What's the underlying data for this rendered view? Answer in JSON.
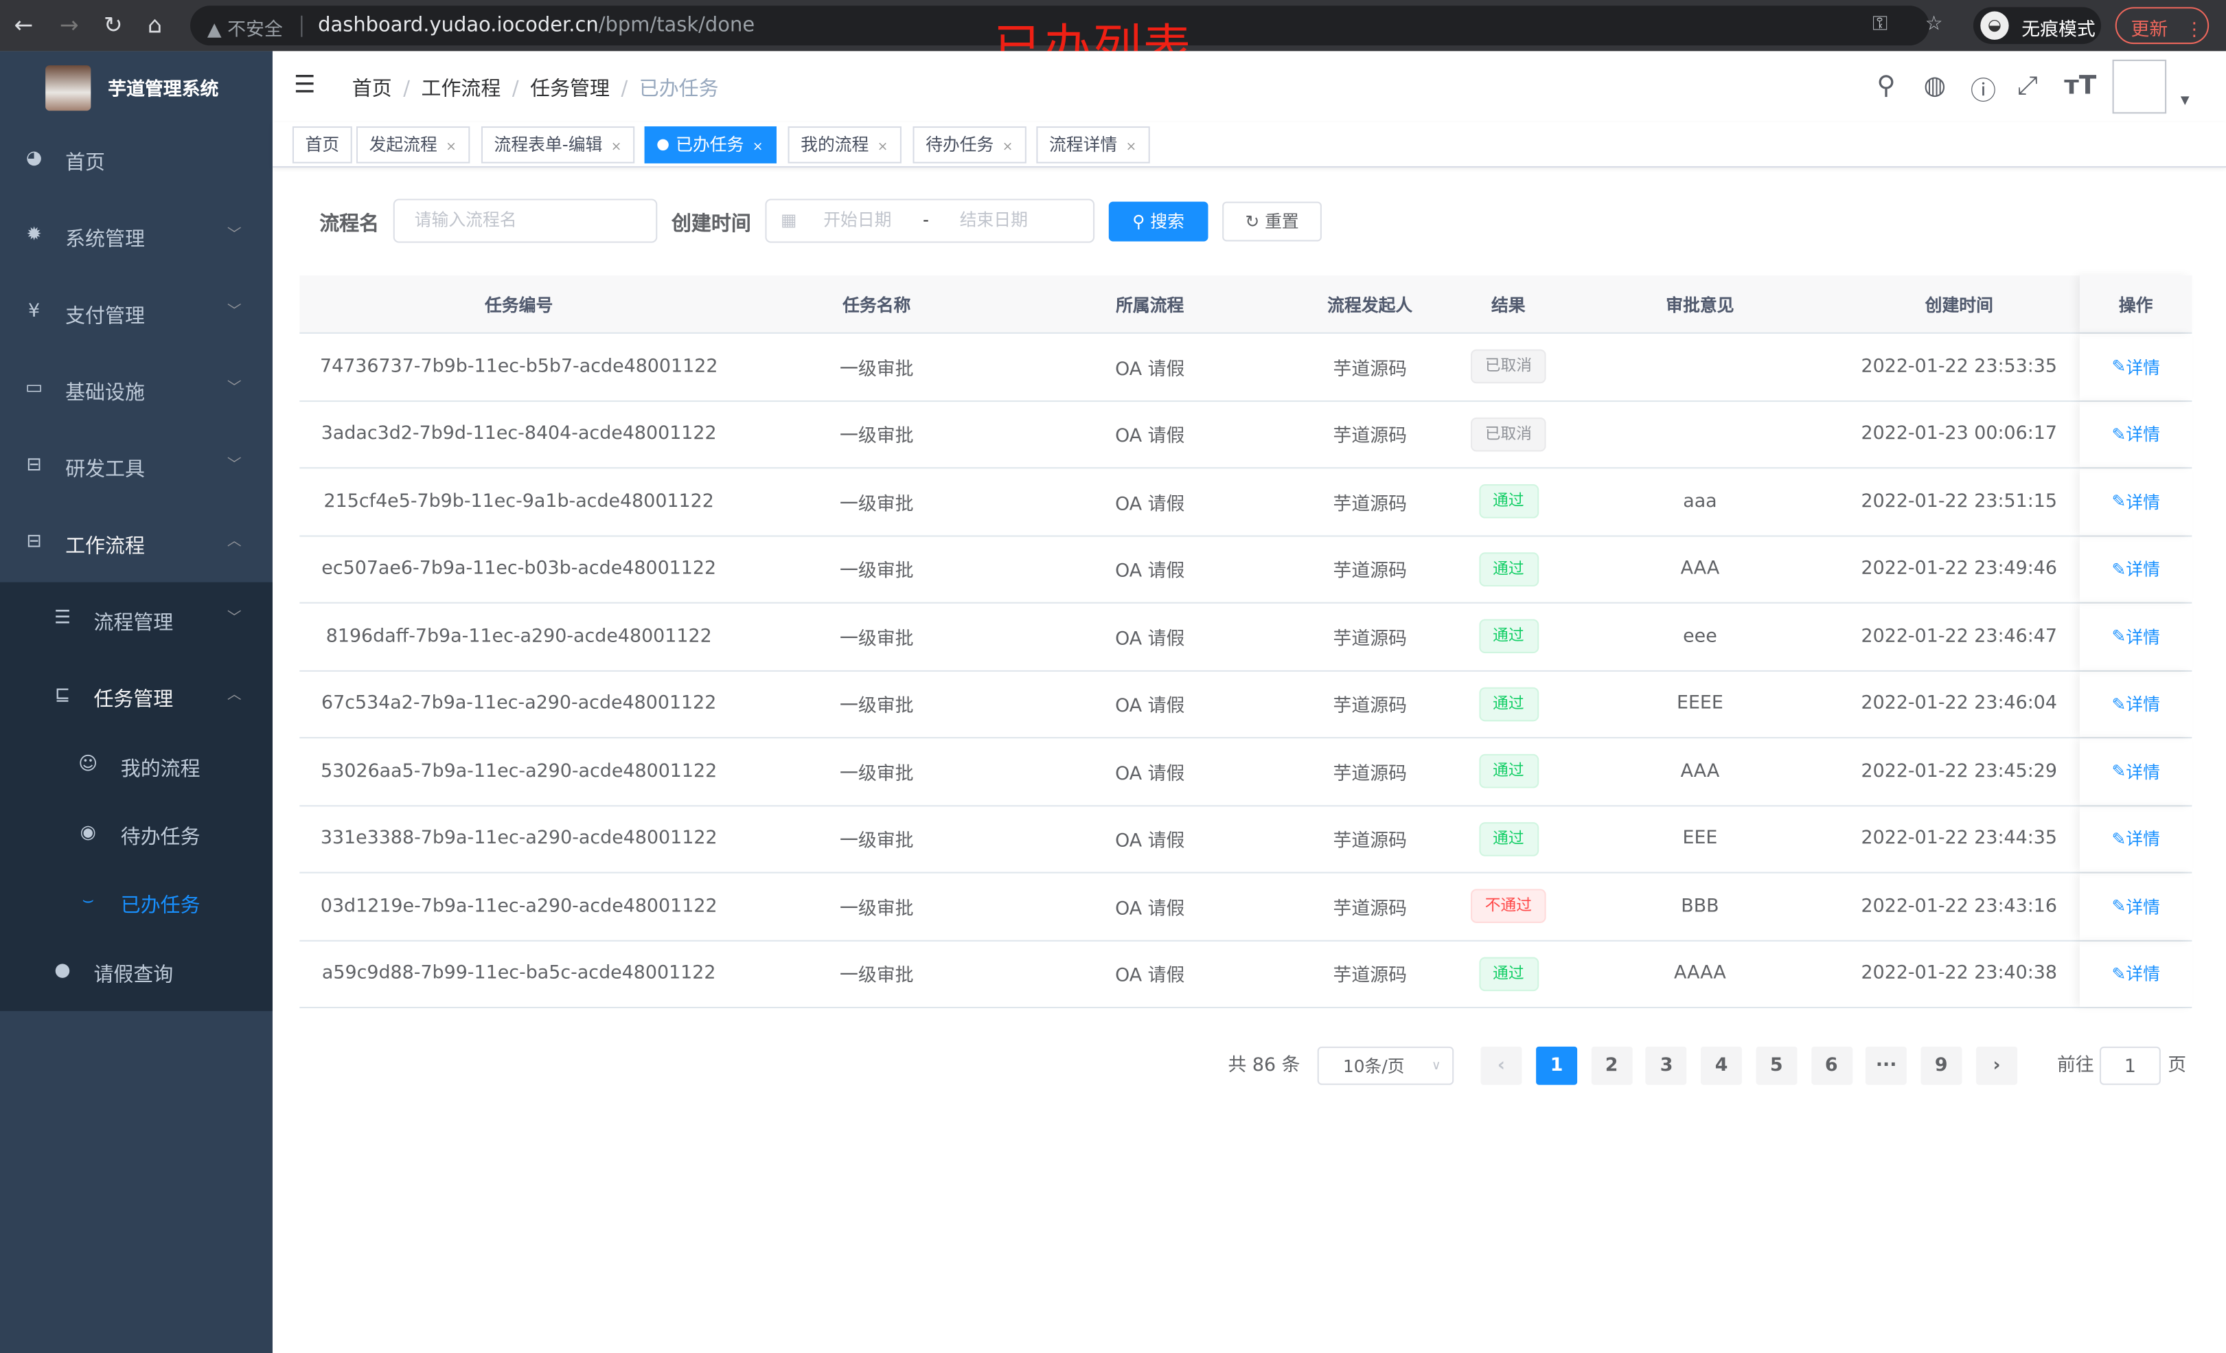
{
  "browser": {
    "not_secure": "不安全",
    "url_host": "dashboard.yudao.iocoder.cn",
    "url_path": "/bpm/task/done",
    "incognito": "无痕模式",
    "update": "更新"
  },
  "overlay_title": "已办列表",
  "sidebar": {
    "brand": "芋道管理系统",
    "items": [
      {
        "label": "首页",
        "icon": "dashboard-icon"
      },
      {
        "label": "系统管理",
        "icon": "gear-icon"
      },
      {
        "label": "支付管理",
        "icon": "yen-icon"
      },
      {
        "label": "基础设施",
        "icon": "monitor-icon"
      },
      {
        "label": "研发工具",
        "icon": "toolbox-icon"
      },
      {
        "label": "工作流程",
        "icon": "toolbox-icon"
      }
    ],
    "sub": [
      {
        "label": "流程管理"
      },
      {
        "label": "任务管理"
      },
      {
        "label": "我的流程"
      },
      {
        "label": "待办任务"
      },
      {
        "label": "已办任务"
      },
      {
        "label": "请假查询"
      }
    ],
    "active_color": "#1890ff"
  },
  "breadcrumb": [
    "首页",
    "工作流程",
    "任务管理",
    "已办任务"
  ],
  "tags": [
    "首页",
    "发起流程",
    "流程表单-编辑",
    "已办任务",
    "我的流程",
    "待办任务",
    "流程详情"
  ],
  "filter": {
    "name_label": "流程名",
    "name_placeholder": "请输入流程名",
    "time_label": "创建时间",
    "start_placeholder": "开始日期",
    "range_sep": "-",
    "end_placeholder": "结束日期",
    "search": "搜索",
    "reset": "重置"
  },
  "table": {
    "headers": [
      "任务编号",
      "任务名称",
      "所属流程",
      "流程发起人",
      "结果",
      "审批意见",
      "创建时间",
      "操作"
    ],
    "rows": [
      [
        "74736737-7b9b-11ec-b5b7-acde48001122",
        "一级审批",
        "OA 请假",
        "芋道源码",
        "已取消",
        "",
        "2022-01-22 23:53:35",
        "详情"
      ],
      [
        "3adac3d2-7b9d-11ec-8404-acde48001122",
        "一级审批",
        "OA 请假",
        "芋道源码",
        "已取消",
        "",
        "2022-01-23 00:06:17",
        "详情"
      ],
      [
        "215cf4e5-7b9b-11ec-9a1b-acde48001122",
        "一级审批",
        "OA 请假",
        "芋道源码",
        "通过",
        "aaa",
        "2022-01-22 23:51:15",
        "详情"
      ],
      [
        "ec507ae6-7b9a-11ec-b03b-acde48001122",
        "一级审批",
        "OA 请假",
        "芋道源码",
        "通过",
        "AAA",
        "2022-01-22 23:49:46",
        "详情"
      ],
      [
        "8196daff-7b9a-11ec-a290-acde48001122",
        "一级审批",
        "OA 请假",
        "芋道源码",
        "通过",
        "eee",
        "2022-01-22 23:46:47",
        "详情"
      ],
      [
        "67c534a2-7b9a-11ec-a290-acde48001122",
        "一级审批",
        "OA 请假",
        "芋道源码",
        "通过",
        "EEEE",
        "2022-01-22 23:46:04",
        "详情"
      ],
      [
        "53026aa5-7b9a-11ec-a290-acde48001122",
        "一级审批",
        "OA 请假",
        "芋道源码",
        "通过",
        "AAA",
        "2022-01-22 23:45:29",
        "详情"
      ],
      [
        "331e3388-7b9a-11ec-a290-acde48001122",
        "一级审批",
        "OA 请假",
        "芋道源码",
        "通过",
        "EEE",
        "2022-01-22 23:44:35",
        "详情"
      ],
      [
        "03d1219e-7b9a-11ec-a290-acde48001122",
        "一级审批",
        "OA 请假",
        "芋道源码",
        "不通过",
        "BBB",
        "2022-01-22 23:43:16",
        "详情"
      ],
      [
        "a59c9d88-7b99-11ec-ba5c-acde48001122",
        "一级审批",
        "OA 请假",
        "芋道源码",
        "通过",
        "AAAA",
        "2022-01-22 23:40:38",
        "详情"
      ]
    ]
  },
  "result_styles": {
    "已取消": {
      "color": "#909399",
      "bg": "#f4f4f5",
      "border": "#e9e9eb"
    },
    "通过": {
      "color": "#13ce66",
      "bg": "#e7faf0",
      "border": "#d0f5e0"
    },
    "不通过": {
      "color": "#ff4949",
      "bg": "#ffeded",
      "border": "#ffdbdb"
    }
  },
  "pagination": {
    "total": "共 86 条",
    "page_size": "10条/页",
    "pages": [
      "1",
      "2",
      "3",
      "4",
      "5",
      "6",
      "···",
      "9"
    ],
    "current": "1",
    "goto_label": "前往",
    "goto_value": "1",
    "goto_suffix": "页"
  }
}
